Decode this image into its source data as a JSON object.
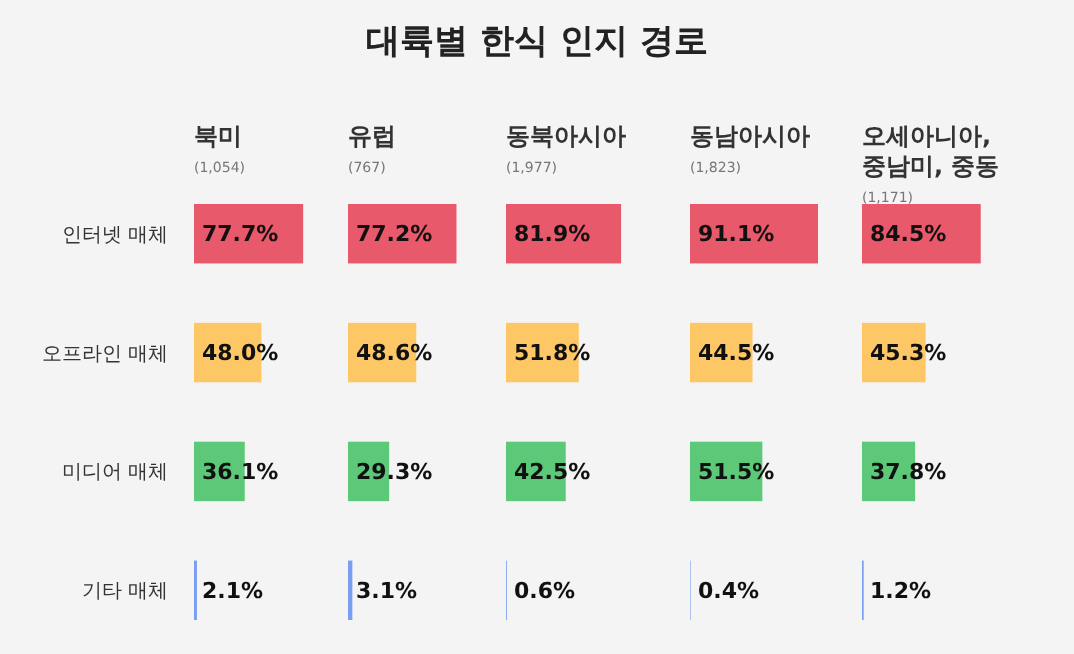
{
  "chart_data": [
    {
      "type": "other",
      "title": "대륙별 한식 인지 경로"
    },
    {
      "type": "bar",
      "orientation": "horizontal",
      "title": "북미",
      "subtitle": "(1,054)",
      "categories": [
        "인터넷 매체",
        "오프라인 매체",
        "미디어 매체",
        "기타 매체"
      ],
      "values": [
        77.7,
        48.0,
        36.1,
        2.1
      ],
      "value_labels": [
        "77.7%",
        "48.0%",
        "36.1%",
        "2.1%"
      ],
      "colors": [
        "#e8596b",
        "#fec766",
        "#5cc878",
        "#7a9ef0"
      ],
      "tick_labels": "y"
    },
    {
      "type": "bar",
      "orientation": "horizontal",
      "title": "유럽",
      "subtitle": "(767)",
      "values": [
        77.2,
        48.6,
        29.3,
        3.1
      ],
      "value_labels": [
        "77.2%",
        "48.6%",
        "29.3%",
        "3.1%"
      ],
      "colors": [
        "#e8596b",
        "#fec766",
        "#5cc878",
        "#7a9ef0"
      ],
      "tick_labels": false
    },
    {
      "type": "bar",
      "orientation": "horizontal",
      "title": "동북아시아",
      "subtitle": "(1,977)",
      "values": [
        81.9,
        51.8,
        42.5,
        0.6
      ],
      "value_labels": [
        "81.9%",
        "51.8%",
        "42.5%",
        "0.6%"
      ],
      "colors": [
        "#e8596b",
        "#fec766",
        "#5cc878",
        "#7a9ef0"
      ],
      "tick_labels": false
    },
    {
      "type": "bar",
      "orientation": "horizontal",
      "title": "동남아시아",
      "subtitle": "(1,823)",
      "values": [
        91.1,
        44.5,
        51.5,
        0.4
      ],
      "value_labels": [
        "91.1%",
        "44.5%",
        "51.5%",
        "0.4%"
      ],
      "colors": [
        "#e8596b",
        "#fec766",
        "#5cc878",
        "#7a9ef0"
      ],
      "tick_labels": false
    },
    {
      "type": "bar",
      "orientation": "horizontal",
      "title": "오세아니아, 중남미, 중동",
      "subtitle": "(1,171)",
      "values": [
        84.5,
        45.3,
        37.8,
        1.2
      ],
      "value_labels": [
        "84.5%",
        "45.3%",
        "37.8%",
        "1.2%"
      ],
      "colors": [
        "#e8596b",
        "#fec766",
        "#5cc878",
        "#7a9ef0"
      ],
      "tick_labels": false
    }
  ]
}
